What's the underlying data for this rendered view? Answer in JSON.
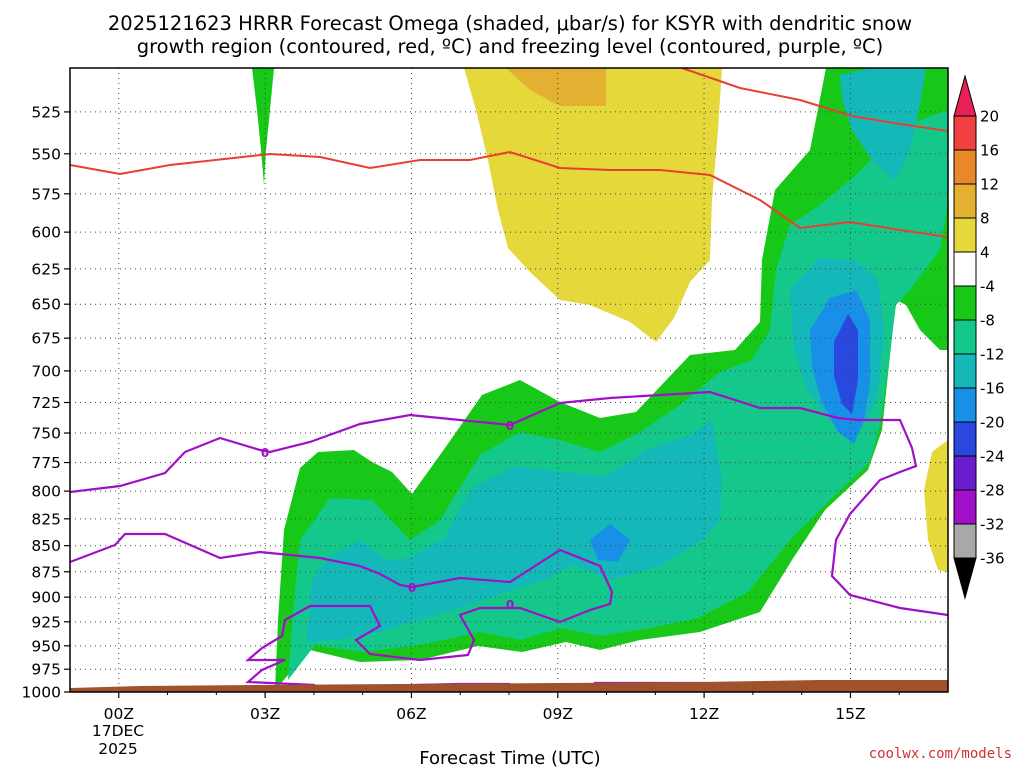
{
  "chart_data": {
    "type": "time-height cross section (filled contour)",
    "title_lines": [
      "2025121623 HRRR Forecast Omega (shaded, μbar/s) for KSYR with dendritic snow",
      "growth region (contoured, red, ºC) and freezing level (contoured, purple, ºC)"
    ],
    "xlabel": "Forecast Time (UTC)",
    "x_ticks": [
      "00Z",
      "03Z",
      "06Z",
      "09Z",
      "12Z",
      "15Z"
    ],
    "x_date_lines": [
      "17DEC",
      "2025"
    ],
    "x_range_hours": [
      -1,
      17
    ],
    "y_levels_hpa": [
      525,
      550,
      575,
      600,
      625,
      650,
      675,
      700,
      725,
      750,
      775,
      800,
      825,
      850,
      875,
      900,
      925,
      950,
      975,
      1000
    ],
    "y_range_hpa": [
      500,
      1000
    ],
    "y_scale": "log-pressure",
    "grid": "dotted",
    "colorbar": {
      "labels": [
        "20",
        "16",
        "12",
        "8",
        "4",
        "-4",
        "-8",
        "-12",
        "-16",
        "-20",
        "-24",
        "-28",
        "-32",
        "-36"
      ],
      "colors": [
        "#e8205a",
        "#f04040",
        "#e8882a",
        "#e4b032",
        "#e4d83a",
        "#ffffff",
        "#18c818",
        "#14c88c",
        "#14b8b8",
        "#1890e8",
        "#2848e0",
        "#6a1cd0",
        "#a010c8",
        "#a8a8a8",
        "#000000"
      ]
    },
    "shaded_regions": [
      {
        "name": "omega-weak-negative",
        "range": "-4 to -8",
        "color": "#18c818"
      },
      {
        "name": "omega-moderate-negative",
        "range": "-8 to -12",
        "color": "#14c88c"
      },
      {
        "name": "omega-strong-negative",
        "range": "-12 to -16",
        "color": "#14b8b8"
      },
      {
        "name": "omega-very-strong-negative",
        "range": "-16 to -20",
        "color": "#1890e8"
      },
      {
        "name": "omega-extreme-negative",
        "range": "-20 to -24",
        "color": "#2848e0"
      },
      {
        "name": "omega-weak-positive",
        "range": "4 to 8",
        "color": "#e4d83a"
      },
      {
        "name": "omega-moderate-positive",
        "range": "8 to 12",
        "color": "#e4b032"
      }
    ],
    "contours": {
      "dgz": {
        "color": "#e84030"
      },
      "freezing_level": {
        "color": "#a010c8",
        "label": "0"
      }
    },
    "terrain_color": "#a0522d"
  },
  "credit": "coolwx.com/models"
}
